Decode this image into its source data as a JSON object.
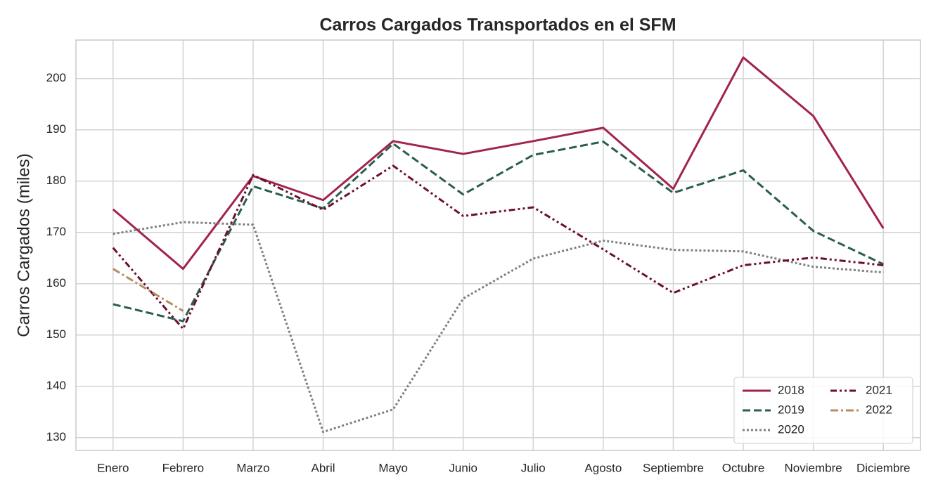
{
  "chart_data": {
    "type": "line",
    "title": "Carros Cargados Transportados en el SFM",
    "y_label": "Carros Cargados (miles)",
    "categories": [
      "Enero",
      "Febrero",
      "Marzo",
      "Abril",
      "Mayo",
      "Junio",
      "Julio",
      "Agosto",
      "Septiembre",
      "Octubre",
      "Noviembre",
      "Diciembre"
    ],
    "series": [
      {
        "name": "2018",
        "color": "#a1234f",
        "linestyle": "solid",
        "values": [
          174.5,
          162.9,
          181,
          176.3,
          187.8,
          185.3,
          187.8,
          190.4,
          178.5,
          204.1,
          192.7,
          170.8
        ]
      },
      {
        "name": "2019",
        "color": "#2a5e4c",
        "linestyle": "dashed",
        "values": [
          156,
          152.7,
          179,
          174.7,
          187.3,
          177.4,
          185.1,
          187.7,
          177.7,
          182.1,
          170.3,
          163.8
        ]
      },
      {
        "name": "2020",
        "color": "#7f7f7f",
        "linestyle": "dotted",
        "values": [
          169.7,
          172,
          171.5,
          131.1,
          135.5,
          157.1,
          164.9,
          168.4,
          166.6,
          166.3,
          163.3,
          162.2
        ]
      },
      {
        "name": "2021",
        "color": "#6b0f2e",
        "linestyle": "dashdotdot",
        "values": [
          167,
          151.2,
          181.2,
          174.4,
          183,
          173.2,
          174.9,
          166.7,
          158.2,
          163.6,
          165.1,
          163.6
        ]
      },
      {
        "name": "2022",
        "color": "#b88c5f",
        "linestyle": "dashdot",
        "values": [
          162.9,
          154.7,
          null,
          null,
          null,
          null,
          null,
          null,
          null,
          null,
          null,
          null
        ]
      }
    ],
    "ylim": [
      127.5,
      207.5
    ],
    "yticks": [
      130,
      140,
      150,
      160,
      170,
      180,
      190,
      200
    ],
    "grid": true,
    "legend": "lower right",
    "legend_columns": 2
  }
}
